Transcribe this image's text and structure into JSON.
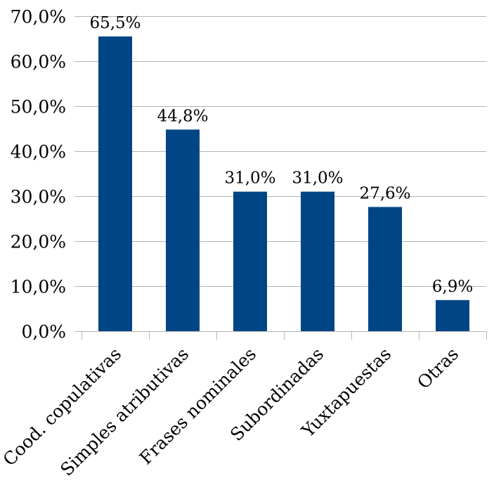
{
  "chart_data": {
    "type": "bar",
    "title": "",
    "xlabel": "",
    "ylabel": "",
    "categories": [
      "Cood. copulativas",
      "Simples atributivas",
      "Frases nominales",
      "Subordinadas",
      "Yuxtapuestas",
      "Otras"
    ],
    "values": [
      65.5,
      44.8,
      31.0,
      31.0,
      27.6,
      6.9
    ],
    "data_labels": [
      "65,5%",
      "44,8%",
      "31,0%",
      "31,0%",
      "27,6%",
      "6,9%"
    ],
    "ylim": [
      0,
      70
    ],
    "yticks": [
      0,
      10,
      20,
      30,
      40,
      50,
      60,
      70
    ],
    "ytick_labels": [
      "0,0%",
      "10,0%",
      "20,0%",
      "30,0%",
      "40,0%",
      "50,0%",
      "60,0%",
      "70,0%"
    ],
    "grid": true,
    "legend": "none",
    "bar_color": "#004586",
    "grid_color": "#b3b3b3"
  }
}
